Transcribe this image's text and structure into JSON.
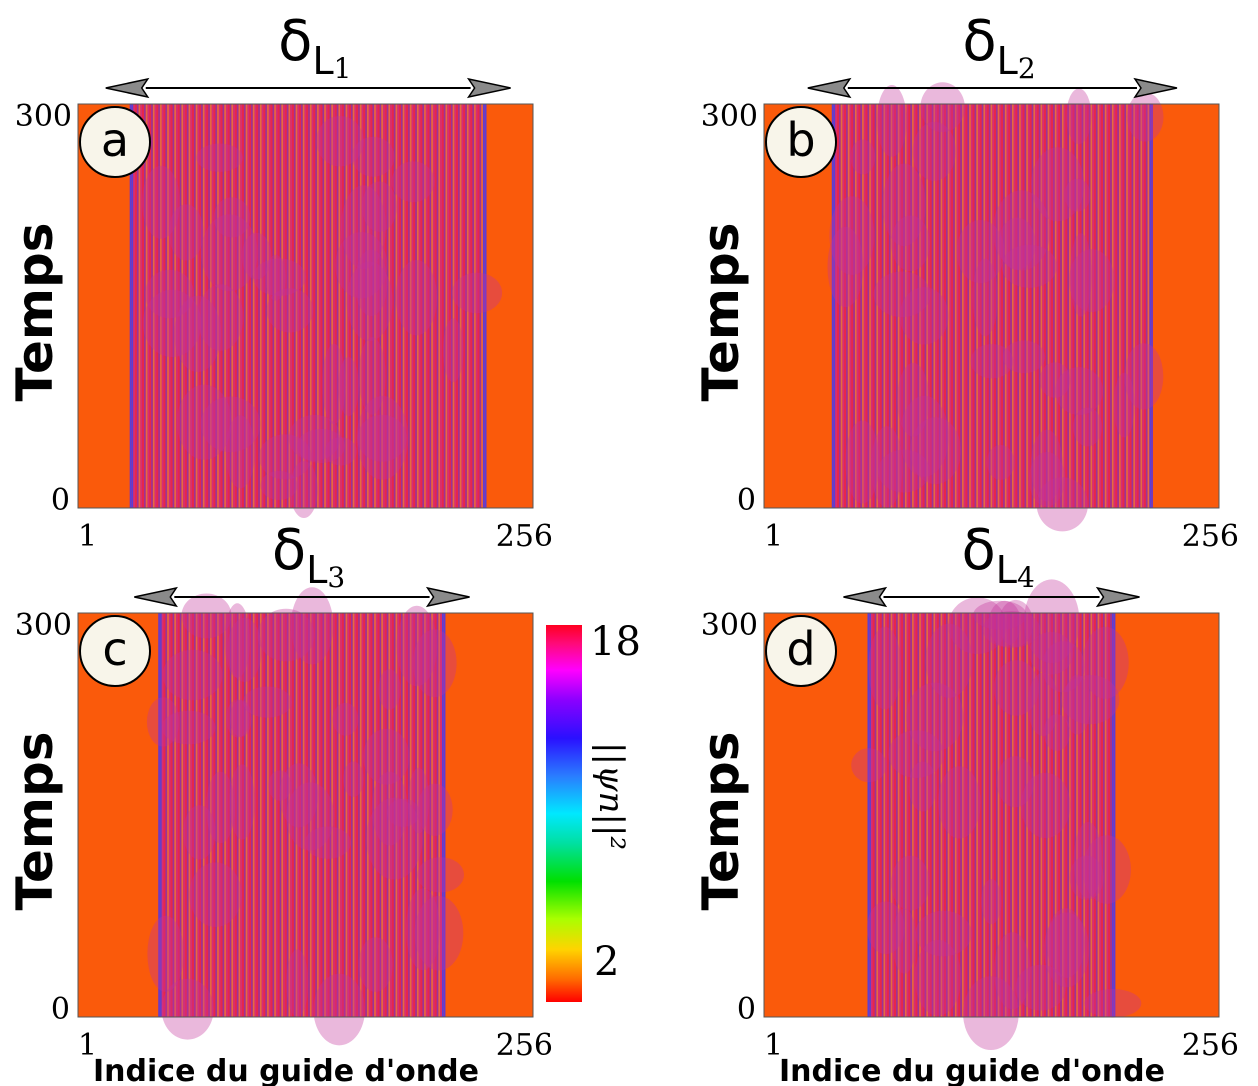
{
  "chart_data": [
    {
      "type": "heatmap",
      "panel_label": "a",
      "width_symbol": "δ",
      "width_subscript": "L",
      "width_index": "1",
      "ylabel": "Temps",
      "xlabel": "",
      "xlim": [
        1,
        256
      ],
      "ylim": [
        0,
        300
      ],
      "x_ticks": [
        "1",
        "256"
      ],
      "y_ticks": [
        "0",
        "300"
      ],
      "band_start": 30,
      "band_end": 230
    },
    {
      "type": "heatmap",
      "panel_label": "b",
      "width_symbol": "δ",
      "width_subscript": "L",
      "width_index": "2",
      "ylabel": "Temps",
      "xlabel": "",
      "xlim": [
        1,
        256
      ],
      "ylim": [
        0,
        300
      ],
      "x_ticks": [
        "1",
        "256"
      ],
      "y_ticks": [
        "0",
        "300"
      ],
      "band_start": 39,
      "band_end": 219
    },
    {
      "type": "heatmap",
      "panel_label": "c",
      "width_symbol": "δ",
      "width_subscript": "L",
      "width_index": "3",
      "ylabel": "Temps",
      "xlabel": "Indice du guide d'onde",
      "xlim": [
        1,
        256
      ],
      "ylim": [
        0,
        300
      ],
      "x_ticks": [
        "1",
        "256"
      ],
      "y_ticks": [
        "0",
        "300"
      ],
      "band_start": 46,
      "band_end": 207
    },
    {
      "type": "heatmap",
      "panel_label": "d",
      "width_symbol": "δ",
      "width_subscript": "L",
      "width_index": "4",
      "ylabel": "Temps",
      "xlabel": "Indice du guide d'onde",
      "xlim": [
        1,
        256
      ],
      "ylim": [
        0,
        300
      ],
      "x_ticks": [
        "1",
        "256"
      ],
      "y_ticks": [
        "0",
        "300"
      ],
      "band_start": 59,
      "band_end": 198
    }
  ],
  "colorbar": {
    "label": "||ψn||²",
    "ticks": [
      "18",
      "2"
    ],
    "range": [
      0,
      18
    ]
  },
  "colors": {
    "background_field": "#fa5a0b",
    "band_red": "#e8274a",
    "band_blue": "#5a3fd6",
    "band_yellow": "#e0a43c",
    "band_magenta": "#c2349a",
    "arrow_head": "#8a8a8a"
  }
}
